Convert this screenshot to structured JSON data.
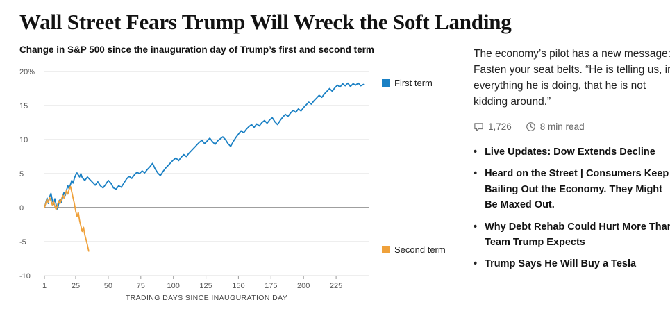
{
  "headline": "Wall Street Fears Trump Will Wreck the Soft Landing",
  "sidebar": {
    "dek": "The economy’s pilot has a new message: Fasten your seat belts. “He is telling us, in everything he is doing, that he is not kidding around.”",
    "comments": "1,726",
    "read_time": "8 min read",
    "related": [
      "Live Updates: Dow Extends Decline",
      "Heard on the Street | Consumers Keep Bailing Out the Economy. They Might Be Maxed Out.",
      "Why Debt Rehab Could Hurt More Than Team Trump Expects",
      "Trump Says He Will Buy a Tesla"
    ]
  },
  "chart_data": {
    "type": "line",
    "title": "Change in S&P 500 since the inauguration day of Trump’s first and second term",
    "xlabel": "TRADING DAYS SINCE INAUGURATION DAY",
    "ylabel": "",
    "xlim": [
      1,
      250
    ],
    "ylim": [
      -10,
      20
    ],
    "x_ticks": [
      1,
      25,
      50,
      75,
      100,
      125,
      150,
      175,
      200,
      225
    ],
    "y_ticks": [
      -10,
      -5,
      0,
      5,
      10,
      15,
      20
    ],
    "y_tick_labels": [
      "-10",
      "-5",
      "0",
      "5",
      "10",
      "15",
      "20%"
    ],
    "grid": true,
    "legend_position": "right",
    "series": [
      {
        "name": "First term",
        "color": "#1a80c4",
        "points": [
          [
            1,
            0
          ],
          [
            2,
            0.7
          ],
          [
            3,
            1.4
          ],
          [
            4,
            0.6
          ],
          [
            5,
            1.6
          ],
          [
            6,
            2.1
          ],
          [
            7,
            1.1
          ],
          [
            8,
            0.5
          ],
          [
            9,
            1.3
          ],
          [
            10,
            0.4
          ],
          [
            11,
            -0.2
          ],
          [
            12,
            0.6
          ],
          [
            13,
            1.2
          ],
          [
            14,
            0.8
          ],
          [
            15,
            1.6
          ],
          [
            16,
            2.2
          ],
          [
            17,
            1.8
          ],
          [
            18,
            2.6
          ],
          [
            19,
            3.2
          ],
          [
            20,
            2.8
          ],
          [
            21,
            3.4
          ],
          [
            22,
            4.0
          ],
          [
            23,
            3.6
          ],
          [
            24,
            4.3
          ],
          [
            25,
            4.8
          ],
          [
            26,
            5.1
          ],
          [
            27,
            4.8
          ],
          [
            28,
            4.5
          ],
          [
            29,
            5.0
          ],
          [
            30,
            4.4
          ],
          [
            32,
            4.0
          ],
          [
            34,
            4.5
          ],
          [
            36,
            4.1
          ],
          [
            38,
            3.7
          ],
          [
            40,
            3.3
          ],
          [
            42,
            3.8
          ],
          [
            44,
            3.2
          ],
          [
            46,
            2.9
          ],
          [
            48,
            3.4
          ],
          [
            50,
            4.0
          ],
          [
            52,
            3.6
          ],
          [
            54,
            2.9
          ],
          [
            56,
            2.7
          ],
          [
            58,
            3.2
          ],
          [
            60,
            3.0
          ],
          [
            62,
            3.6
          ],
          [
            64,
            4.2
          ],
          [
            66,
            4.6
          ],
          [
            68,
            4.3
          ],
          [
            70,
            4.8
          ],
          [
            72,
            5.2
          ],
          [
            74,
            5.0
          ],
          [
            76,
            5.4
          ],
          [
            78,
            5.1
          ],
          [
            80,
            5.6
          ],
          [
            82,
            6.0
          ],
          [
            84,
            6.5
          ],
          [
            86,
            5.7
          ],
          [
            88,
            5.1
          ],
          [
            90,
            4.7
          ],
          [
            92,
            5.3
          ],
          [
            94,
            5.8
          ],
          [
            96,
            6.2
          ],
          [
            98,
            6.6
          ],
          [
            100,
            7.0
          ],
          [
            102,
            7.3
          ],
          [
            104,
            6.9
          ],
          [
            106,
            7.4
          ],
          [
            108,
            7.8
          ],
          [
            110,
            7.5
          ],
          [
            112,
            8.0
          ],
          [
            114,
            8.4
          ],
          [
            116,
            8.8
          ],
          [
            118,
            9.2
          ],
          [
            120,
            9.6
          ],
          [
            122,
            9.9
          ],
          [
            124,
            9.4
          ],
          [
            126,
            9.8
          ],
          [
            128,
            10.2
          ],
          [
            130,
            9.7
          ],
          [
            132,
            9.3
          ],
          [
            134,
            9.8
          ],
          [
            136,
            10.1
          ],
          [
            138,
            10.4
          ],
          [
            140,
            10.0
          ],
          [
            142,
            9.4
          ],
          [
            144,
            9.0
          ],
          [
            146,
            9.7
          ],
          [
            148,
            10.3
          ],
          [
            150,
            10.8
          ],
          [
            152,
            11.3
          ],
          [
            154,
            11.0
          ],
          [
            156,
            11.5
          ],
          [
            158,
            11.9
          ],
          [
            160,
            12.2
          ],
          [
            162,
            11.8
          ],
          [
            164,
            12.3
          ],
          [
            166,
            12.0
          ],
          [
            168,
            12.5
          ],
          [
            170,
            12.8
          ],
          [
            172,
            12.4
          ],
          [
            174,
            12.9
          ],
          [
            176,
            13.2
          ],
          [
            178,
            12.6
          ],
          [
            180,
            12.2
          ],
          [
            182,
            12.8
          ],
          [
            184,
            13.3
          ],
          [
            186,
            13.7
          ],
          [
            188,
            13.4
          ],
          [
            190,
            13.9
          ],
          [
            192,
            14.3
          ],
          [
            194,
            14.0
          ],
          [
            196,
            14.5
          ],
          [
            198,
            14.2
          ],
          [
            200,
            14.7
          ],
          [
            202,
            15.1
          ],
          [
            204,
            15.5
          ],
          [
            206,
            15.2
          ],
          [
            208,
            15.7
          ],
          [
            210,
            16.1
          ],
          [
            212,
            16.5
          ],
          [
            214,
            16.2
          ],
          [
            216,
            16.7
          ],
          [
            218,
            17.1
          ],
          [
            220,
            17.5
          ],
          [
            222,
            17.1
          ],
          [
            224,
            17.6
          ],
          [
            226,
            18.0
          ],
          [
            228,
            17.7
          ],
          [
            230,
            18.2
          ],
          [
            232,
            17.9
          ],
          [
            234,
            18.3
          ],
          [
            236,
            17.8
          ],
          [
            238,
            18.2
          ],
          [
            240,
            18.0
          ],
          [
            242,
            18.3
          ],
          [
            244,
            17.9
          ],
          [
            246,
            18.1
          ]
        ]
      },
      {
        "name": "Second term",
        "color": "#efa13b",
        "points": [
          [
            1,
            0
          ],
          [
            2,
            0.6
          ],
          [
            3,
            1.2
          ],
          [
            4,
            0.7
          ],
          [
            5,
            1.5
          ],
          [
            6,
            1.0
          ],
          [
            7,
            0.4
          ],
          [
            8,
            0.9
          ],
          [
            9,
            0.2
          ],
          [
            10,
            -0.3
          ],
          [
            11,
            0.4
          ],
          [
            12,
            1.0
          ],
          [
            13,
            0.6
          ],
          [
            14,
            1.2
          ],
          [
            15,
            1.8
          ],
          [
            16,
            1.4
          ],
          [
            17,
            2.0
          ],
          [
            18,
            2.5
          ],
          [
            19,
            2.0
          ],
          [
            20,
            2.7
          ],
          [
            21,
            3.1
          ],
          [
            22,
            2.3
          ],
          [
            23,
            1.4
          ],
          [
            24,
            0.6
          ],
          [
            25,
            -0.5
          ],
          [
            26,
            -1.3
          ],
          [
            27,
            -0.7
          ],
          [
            28,
            -1.9
          ],
          [
            29,
            -2.7
          ],
          [
            30,
            -3.5
          ],
          [
            31,
            -2.9
          ],
          [
            32,
            -4.0
          ],
          [
            33,
            -4.7
          ],
          [
            34,
            -5.5
          ],
          [
            35,
            -6.4
          ]
        ]
      }
    ]
  }
}
